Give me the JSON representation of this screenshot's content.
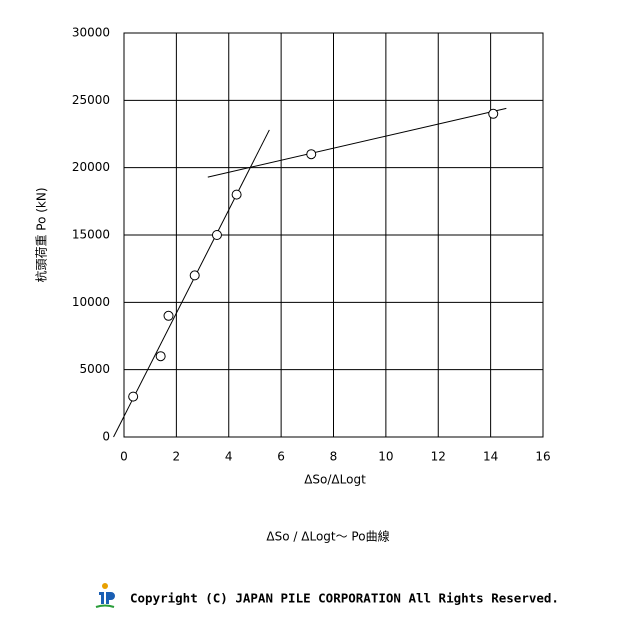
{
  "chart_data": {
    "type": "scatter",
    "x_label": "ΔSo/ΔLogt",
    "y_label": "杭頭荷重 Po (kN)",
    "caption": "ΔSo / ΔLogt～ Po曲線",
    "x": [
      0.35,
      1.4,
      1.7,
      2.7,
      3.55,
      4.3,
      7.15,
      14.1
    ],
    "values": [
      3000,
      6000,
      9000,
      12000,
      15000,
      18000,
      21000,
      24000
    ],
    "lines": [
      {
        "x": [
          -0.4,
          5.55
        ],
        "values": [
          0,
          22800
        ]
      },
      {
        "x": [
          3.2,
          14.6
        ],
        "values": [
          19300,
          24400
        ]
      }
    ],
    "xlim": [
      0,
      16
    ],
    "ylim": [
      0,
      30000
    ],
    "xticks": [
      0,
      2,
      4,
      6,
      8,
      10,
      12,
      14,
      16
    ],
    "yticks": [
      0,
      5000,
      10000,
      15000,
      20000,
      25000,
      30000
    ],
    "grid": true
  },
  "footer": {
    "copyright": "Copyright (C) JAPAN PILE CORPORATION All Rights Reserved."
  }
}
